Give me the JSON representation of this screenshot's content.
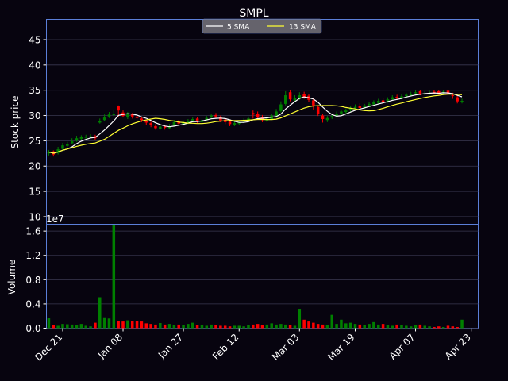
{
  "chart_data": {
    "type": "candlestick",
    "title": "SMPL",
    "price_panel": {
      "ylabel": "Stock price",
      "ylim": [
        8.5,
        49
      ],
      "yticks": [
        10,
        15,
        20,
        25,
        30,
        35,
        40,
        45
      ],
      "grid": true
    },
    "volume_panel": {
      "ylabel": "Volume",
      "ylim": [
        0,
        17000000
      ],
      "yticks": [
        0.0,
        0.4,
        0.8,
        1.2,
        1.6
      ],
      "ytick_labels": [
        "0.0",
        "0.4",
        "0.8",
        "1.2",
        "1.6"
      ],
      "offset_text": "1e7",
      "grid": true
    },
    "x_axis": {
      "ticks": [
        {
          "label": "Dec 21",
          "index": 3
        },
        {
          "label": "Jan 08",
          "index": 16
        },
        {
          "label": "Jan 27",
          "index": 29
        },
        {
          "label": "Feb 12",
          "index": 41
        },
        {
          "label": "Mar 03",
          "index": 54
        },
        {
          "label": "Mar 19",
          "index": 66
        },
        {
          "label": "Apr 07",
          "index": 79
        },
        {
          "label": "Apr 23",
          "index": 91
        }
      ],
      "xlim": [
        0,
        93
      ]
    },
    "legend": {
      "placement": "upper center",
      "entries": [
        {
          "label": "5 SMA",
          "color": "#ffffff"
        },
        {
          "label": "13 SMA",
          "color": "#ffff33"
        }
      ]
    },
    "colors": {
      "up": "#008000",
      "down": "#ff0000",
      "background": "#07040f",
      "axes_edge": "#5b7fd8",
      "grid": "#3a3850"
    },
    "close": [
      22.8,
      22.3,
      23.3,
      24.1,
      24.4,
      24.9,
      25.5,
      25.7,
      25.8,
      25.9,
      25.5,
      28.9,
      29.6,
      30.2,
      30.4,
      31.0,
      29.9,
      30.3,
      29.8,
      29.5,
      29.1,
      28.6,
      28.1,
      27.5,
      27.8,
      27.6,
      27.9,
      28.7,
      28.4,
      28.6,
      28.9,
      29.3,
      28.8,
      29.1,
      29.5,
      30.0,
      29.8,
      29.0,
      28.7,
      28.3,
      28.5,
      28.7,
      29.0,
      29.4,
      30.2,
      29.6,
      29.1,
      29.4,
      30.0,
      30.8,
      32.2,
      34.0,
      33.2,
      33.5,
      34.0,
      33.7,
      33.1,
      32.0,
      30.3,
      29.3,
      29.5,
      29.9,
      30.3,
      30.8,
      31.0,
      31.4,
      31.7,
      31.5,
      32.0,
      32.3,
      32.6,
      32.9,
      32.7,
      33.2,
      33.6,
      33.5,
      33.8,
      34.1,
      34.3,
      34.6,
      34.2,
      34.4,
      34.5,
      34.6,
      34.3,
      34.7,
      34.2,
      33.9,
      32.8,
      32.9
    ],
    "open": [
      22.5,
      22.9,
      22.6,
      23.4,
      24.0,
      24.5,
      25.0,
      25.4,
      25.6,
      25.8,
      25.9,
      28.6,
      29.1,
      29.8,
      30.1,
      31.8,
      30.6,
      29.6,
      30.2,
      29.8,
      29.4,
      28.9,
      28.5,
      27.9,
      27.4,
      27.9,
      27.5,
      28.0,
      28.9,
      28.3,
      28.5,
      29.0,
      29.4,
      28.7,
      29.1,
      29.6,
      30.1,
      29.7,
      29.2,
      28.8,
      28.2,
      28.4,
      28.8,
      29.0,
      30.5,
      30.4,
      29.7,
      29.0,
      29.3,
      29.9,
      30.9,
      32.3,
      34.6,
      33.0,
      33.4,
      34.2,
      33.9,
      33.0,
      31.7,
      30.0,
      29.1,
      29.6,
      30.0,
      30.4,
      30.7,
      31.1,
      31.3,
      31.9,
      31.6,
      32.0,
      32.2,
      32.5,
      33.0,
      32.7,
      33.2,
      33.7,
      33.5,
      33.8,
      34.0,
      34.4,
      34.8,
      34.2,
      34.4,
      34.7,
      34.8,
      34.4,
      34.9,
      34.0,
      33.6,
      32.6
    ],
    "high": [
      23.2,
      23.1,
      23.8,
      24.6,
      24.8,
      25.5,
      26.0,
      26.1,
      26.2,
      26.3,
      26.2,
      29.4,
      30.2,
      30.7,
      31.0,
      32.0,
      31.0,
      30.7,
      30.5,
      30.1,
      29.7,
      29.2,
      28.8,
      28.3,
      28.2,
      28.1,
      28.3,
      29.1,
      29.1,
      29.0,
      29.3,
      29.6,
      29.7,
      29.4,
      29.9,
      30.4,
      30.5,
      30.0,
      29.4,
      29.1,
      28.9,
      29.0,
      29.4,
      29.8,
      31.0,
      30.8,
      30.1,
      29.8,
      30.4,
      31.3,
      32.8,
      34.8,
      35.0,
      34.0,
      34.6,
      34.7,
      34.2,
      33.4,
      32.0,
      30.4,
      29.9,
      30.3,
      30.8,
      31.2,
      31.4,
      31.8,
      32.2,
      32.4,
      32.3,
      32.7,
      33.0,
      33.3,
      33.4,
      33.6,
      34.0,
      34.1,
      34.2,
      34.5,
      34.7,
      35.0,
      35.1,
      34.8,
      34.9,
      35.0,
      35.1,
      35.0,
      35.2,
      34.5,
      33.9,
      33.3
    ],
    "low": [
      22.1,
      21.9,
      22.3,
      23.1,
      23.8,
      24.3,
      24.8,
      25.2,
      25.4,
      25.5,
      25.2,
      28.4,
      28.9,
      29.5,
      29.8,
      29.7,
      29.6,
      29.3,
      29.4,
      29.1,
      28.7,
      28.2,
      27.7,
      27.2,
      27.2,
      27.2,
      27.3,
      27.8,
      28.1,
      28.1,
      28.3,
      28.8,
      28.5,
      28.4,
      28.9,
      29.4,
      29.5,
      28.7,
      28.3,
      27.9,
      27.9,
      28.1,
      28.5,
      28.8,
      29.4,
      29.2,
      28.7,
      28.7,
      29.1,
      29.7,
      30.6,
      32.0,
      32.8,
      32.7,
      33.1,
      33.3,
      32.6,
      31.2,
      29.9,
      28.6,
      28.7,
      29.3,
      29.7,
      30.1,
      30.4,
      30.8,
      31.0,
      31.1,
      31.3,
      31.7,
      32.0,
      32.2,
      32.3,
      32.5,
      32.9,
      33.1,
      33.2,
      33.5,
      33.7,
      34.0,
      34.0,
      34.0,
      34.1,
      34.3,
      34.1,
      34.2,
      33.9,
      33.3,
      32.4,
      32.4
    ],
    "volume": [
      1700000,
      500000,
      400000,
      700000,
      650000,
      600000,
      500000,
      700000,
      400000,
      300000,
      900000,
      5100000,
      1800000,
      1600000,
      17000000,
      1200000,
      1100000,
      1300000,
      1200000,
      1200000,
      1100000,
      800000,
      700000,
      600000,
      850000,
      600000,
      700000,
      500000,
      600000,
      500000,
      700000,
      900000,
      500000,
      500000,
      400000,
      600000,
      500000,
      400000,
      400000,
      300000,
      400000,
      400000,
      300000,
      500000,
      600000,
      700000,
      500000,
      600000,
      800000,
      600000,
      700000,
      600000,
      500000,
      400000,
      3200000,
      1400000,
      1100000,
      900000,
      700000,
      600000,
      500000,
      2200000,
      700000,
      1400000,
      800000,
      900000,
      700000,
      600000,
      500000,
      700000,
      1000000,
      600000,
      700000,
      500000,
      400000,
      600000,
      500000,
      400000,
      300000,
      500000,
      600000,
      400000,
      300000,
      200000,
      300000,
      200000,
      400000,
      300000,
      200000,
      1400000
    ]
  }
}
